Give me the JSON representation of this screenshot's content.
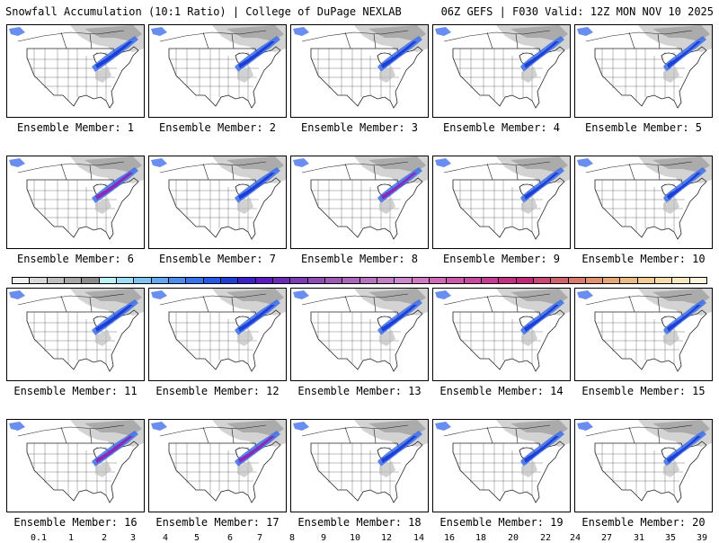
{
  "header": {
    "left_title": "Snowfall Accumulation (10:1 Ratio) | College of DuPage NEXLAB",
    "right_title": "06Z GEFS | F030 Valid: 12Z MON NOV 10 2025"
  },
  "panel_labels": [
    "Ensemble Member: 1",
    "Ensemble Member: 2",
    "Ensemble Member: 3",
    "Ensemble Member: 4",
    "Ensemble Member: 5",
    "Ensemble Member: 6",
    "Ensemble Member: 7",
    "Ensemble Member: 8",
    "Ensemble Member: 9",
    "Ensemble Member: 10",
    "Ensemble Member: 11",
    "Ensemble Member: 12",
    "Ensemble Member: 13",
    "Ensemble Member: 14",
    "Ensemble Member: 15",
    "Ensemble Member: 16",
    "Ensemble Member: 17",
    "Ensemble Member: 18",
    "Ensemble Member: 19",
    "Ensemble Member: 20"
  ],
  "colorbar": {
    "ticks": [
      "0.1",
      "1",
      "2",
      "3",
      "4",
      "5",
      "6",
      "7",
      "8",
      "9",
      "10",
      "12",
      "14",
      "16",
      "18",
      "20",
      "22",
      "24",
      "27",
      "31",
      "35",
      "39"
    ],
    "colors": [
      "#f2f2f2",
      "#d9d9d9",
      "#bfbfbf",
      "#a6a6a6",
      "#8c8c8c",
      "#bdf0f0",
      "#9fdcf5",
      "#7fc3f5",
      "#63a9f2",
      "#4c8ef0",
      "#3773ec",
      "#2458e6",
      "#1d3fd8",
      "#3a20c8",
      "#5a1cc0",
      "#6c2ab8",
      "#7e3cb4",
      "#8e4cb4",
      "#9c5ab6",
      "#aa66ba",
      "#b872c0",
      "#c47ec6",
      "#cc88cc",
      "#d07ac4",
      "#d06ab8",
      "#cc5aac",
      "#c84aa0",
      "#c43c92",
      "#c23084",
      "#c02878",
      "#c84a74",
      "#d0626e",
      "#d87a6c",
      "#e0926e",
      "#e6a676",
      "#ecba84",
      "#f2cc96",
      "#f6dcaa",
      "#f8e8c0",
      "#fbf3dc"
    ]
  }
}
